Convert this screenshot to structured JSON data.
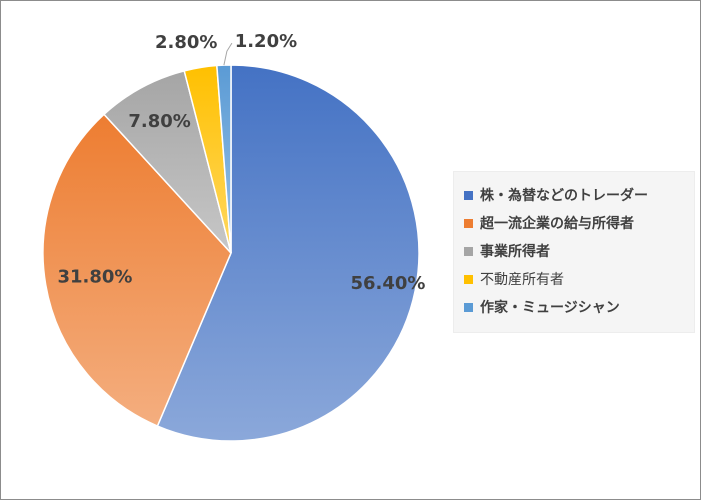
{
  "chart_data": {
    "type": "pie",
    "categories": [
      "株・為替などのトレーダー",
      "超一流企業の給与所得者",
      "事業所得者",
      "不動産所有者",
      "作家・ミュージシャン"
    ],
    "values": [
      56.4,
      31.8,
      7.8,
      2.8,
      1.2
    ],
    "data_labels": [
      "56.40%",
      "31.80%",
      "7.80%",
      "2.80%",
      "1.20%"
    ],
    "colors": [
      "#4472c4",
      "#ed7d31",
      "#a5a5a5",
      "#ffc000",
      "#5b9bd5"
    ],
    "start_angle_deg": 0,
    "direction": "clockwise",
    "legend_position": "right"
  },
  "legend": {
    "items": [
      {
        "label": "株・為替などのトレーダー",
        "color": "#4472c4"
      },
      {
        "label": "超一流企業の給与所得者",
        "color": "#ed7d31"
      },
      {
        "label": "事業所得者",
        "color": "#a5a5a5"
      },
      {
        "label": "不動産所有者",
        "color": "#ffc000"
      },
      {
        "label": "作家・ミュージシャン",
        "color": "#5b9bd5"
      }
    ]
  }
}
